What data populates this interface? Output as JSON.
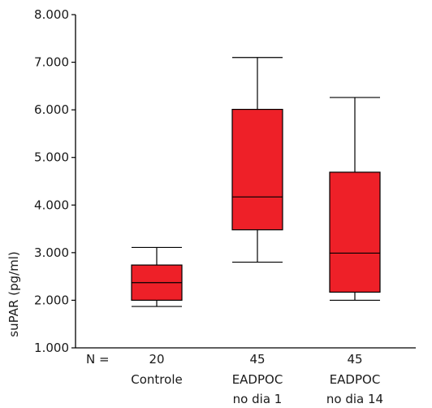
{
  "chart_data": {
    "type": "boxplot",
    "ylabel": "suPAR (pg/ml)",
    "ylim": [
      1000,
      8000
    ],
    "yticks": [
      {
        "value": 1000,
        "label": "1.000"
      },
      {
        "value": 2000,
        "label": "2.000"
      },
      {
        "value": 3000,
        "label": "3.000"
      },
      {
        "value": 4000,
        "label": "4.000"
      },
      {
        "value": 5000,
        "label": "5.000"
      },
      {
        "value": 6000,
        "label": "6.000"
      },
      {
        "value": 7000,
        "label": "7.000"
      },
      {
        "value": 8000,
        "label": "8.000"
      }
    ],
    "n_label": "N =",
    "box_color": "#ee2028",
    "groups": [
      {
        "n": "20",
        "label_lines": [
          "Controle"
        ],
        "whisker_low": 1870,
        "q1": 2000,
        "median": 2370,
        "q3": 2740,
        "whisker_high": 3110
      },
      {
        "n": "45",
        "label_lines": [
          "EADPOC",
          "no dia 1"
        ],
        "whisker_low": 2800,
        "q1": 3480,
        "median": 4170,
        "q3": 6010,
        "whisker_high": 7100
      },
      {
        "n": "45",
        "label_lines": [
          "EADPOC",
          "no dia 14"
        ],
        "whisker_low": 2000,
        "q1": 2170,
        "median": 2990,
        "q3": 4690,
        "whisker_high": 6260
      }
    ]
  }
}
